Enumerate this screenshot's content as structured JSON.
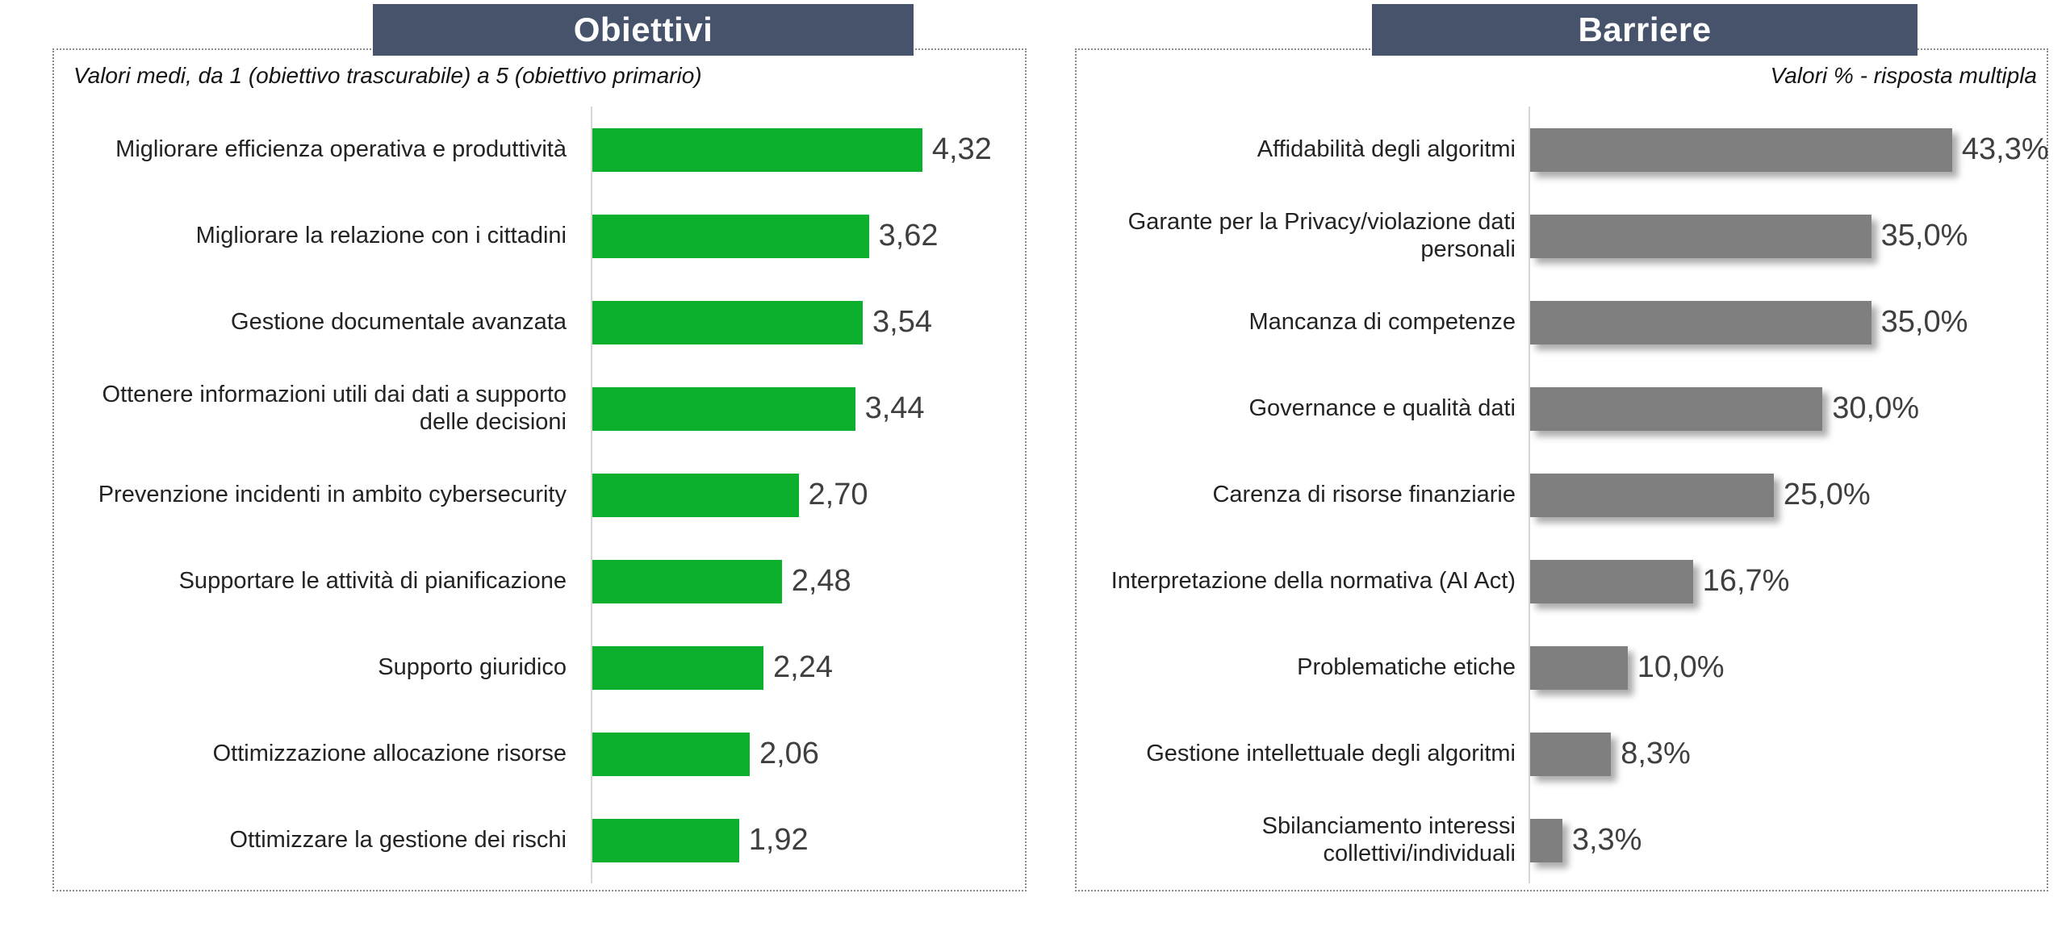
{
  "colors": {
    "header_bg": "#46536b",
    "header_text": "#ffffff",
    "panel_border": "#8a8a8a",
    "axis_line": "#d6d6d6",
    "label_text": "#232323",
    "value_text": "#3f3f3f",
    "green_bar": "#0cb02c",
    "gray_bar": "#7f7f7f"
  },
  "chart_data": [
    {
      "type": "bar",
      "orientation": "horizontal",
      "title": "Obiettivi",
      "subtitle": "Valori medi, da 1 (obiettivo trascurabile) a 5 (obiettivo primario)",
      "bar_color": "#0cb02c",
      "bar_shadow": false,
      "xlim": [
        0,
        5.6
      ],
      "grid": false,
      "legend": "none",
      "categories": [
        "Migliorare efficienza operativa e produttività",
        "Migliorare la relazione con i cittadini",
        "Gestione documentale avanzata",
        "Ottenere informazioni utili dai dati a supporto delle decisioni",
        "Prevenzione incidenti in ambito cybersecurity",
        "Supportare le attività di pianificazione",
        "Supporto giuridico",
        "Ottimizzazione allocazione risorse",
        "Ottimizzare la gestione dei rischi"
      ],
      "values": [
        4.32,
        3.62,
        3.54,
        3.44,
        2.7,
        2.48,
        2.24,
        2.06,
        1.92
      ],
      "value_labels": [
        "4,32",
        "3,62",
        "3,54",
        "3,44",
        "2,70",
        "2,48",
        "2,24",
        "2,06",
        "1,92"
      ]
    },
    {
      "type": "bar",
      "orientation": "horizontal",
      "title": "Barriere",
      "subtitle": "Valori % - risposta multipla",
      "bar_color": "#7f7f7f",
      "bar_shadow": true,
      "xlim": [
        0,
        52.5
      ],
      "grid": false,
      "legend": "none",
      "categories": [
        "Affidabilità degli algoritmi",
        "Garante per la Privacy/violazione dati personali",
        "Mancanza di competenze",
        "Governance e qualità dati",
        "Carenza di risorse finanziarie",
        "Interpretazione della normativa (AI Act)",
        "Problematiche etiche",
        "Gestione intellettuale degli algoritmi",
        "Sbilanciamento interessi collettivi/individuali"
      ],
      "values": [
        43.3,
        35.0,
        35.0,
        30.0,
        25.0,
        16.7,
        10.0,
        8.3,
        3.3
      ],
      "value_labels": [
        "43,3%",
        "35,0%",
        "35,0%",
        "30,0%",
        "25,0%",
        "16,7%",
        "10,0%",
        "8,3%",
        "3,3%"
      ]
    }
  ]
}
